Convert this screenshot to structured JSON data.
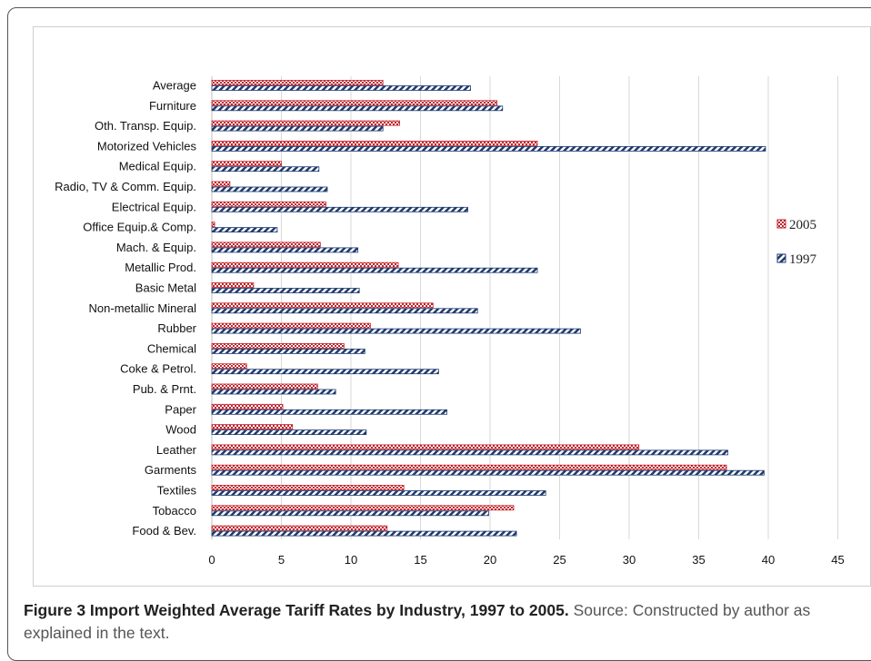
{
  "caption": {
    "title": "Figure 3 Import Weighted Average Tariff Rates by Industry, 1997 to 2005.",
    "text": "Source: Constructed by author as explained in the text."
  },
  "colors": {
    "series_2005": "#c0232b",
    "series_1997": "#1f3a6e",
    "grid": "#d9d9d9"
  },
  "chart_data": {
    "type": "bar",
    "orientation": "horizontal",
    "categories": [
      "Average",
      "Furniture",
      "Oth. Transp. Equip.",
      "Motorized Vehicles",
      "Medical Equip.",
      "Radio, TV & Comm. Equip.",
      "Electrical Equip.",
      "Office Equip.& Comp.",
      "Mach. & Equip.",
      "Metallic Prod.",
      "Basic Metal",
      "Non-metallic Mineral",
      "Rubber",
      "Chemical",
      "Coke & Petrol.",
      "Pub. & Prnt.",
      "Paper",
      "Wood",
      "Leather",
      "Garments",
      "Textiles",
      "Tobacco",
      "Food & Bev."
    ],
    "series": [
      {
        "name": "2005",
        "pattern": "checker",
        "values": [
          12.3,
          20.5,
          13.5,
          23.4,
          5.0,
          1.3,
          8.2,
          0.2,
          7.8,
          13.4,
          3.0,
          15.9,
          11.4,
          9.5,
          2.5,
          7.6,
          5.1,
          5.8,
          30.7,
          37.0,
          13.8,
          21.7,
          12.6
        ]
      },
      {
        "name": "1997",
        "pattern": "diagonal",
        "values": [
          18.6,
          20.9,
          12.3,
          39.8,
          7.7,
          8.3,
          18.4,
          4.7,
          10.5,
          23.4,
          10.6,
          19.1,
          26.5,
          11.0,
          16.3,
          8.9,
          16.9,
          11.1,
          37.1,
          39.7,
          24.0,
          19.9,
          21.9
        ]
      }
    ],
    "xlim": [
      0,
      45
    ],
    "xticks": [
      "0",
      "5",
      "10",
      "15",
      "20",
      "25",
      "30",
      "35",
      "40",
      "45"
    ],
    "grid": "vertical",
    "legend": [
      "2005",
      "1997"
    ],
    "legend_position": "right"
  }
}
